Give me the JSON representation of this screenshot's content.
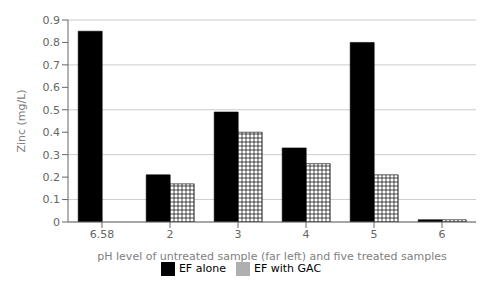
{
  "chart_data": {
    "type": "bar",
    "categories": [
      "6.58",
      "2",
      "3",
      "4",
      "5",
      "6"
    ],
    "series": [
      {
        "name": "EF alone",
        "color": "#000000",
        "values": [
          0.85,
          0.21,
          0.49,
          0.33,
          0.8,
          0.01
        ]
      },
      {
        "name": "EF with GAC",
        "color": "#ffffff",
        "values": [
          0.0,
          0.17,
          0.4,
          0.26,
          0.21,
          0.01
        ]
      }
    ],
    "xlabel": "pH level of untreated sample (far left) and five treated samples",
    "ylabel": "Zinc (mg/L)",
    "ylim": [
      0,
      0.9
    ],
    "yticks": [
      0.0,
      0.1,
      0.2,
      0.3,
      0.4,
      0.5,
      0.6,
      0.7,
      0.8,
      0.9
    ],
    "grid": true,
    "legend": "bottom"
  }
}
